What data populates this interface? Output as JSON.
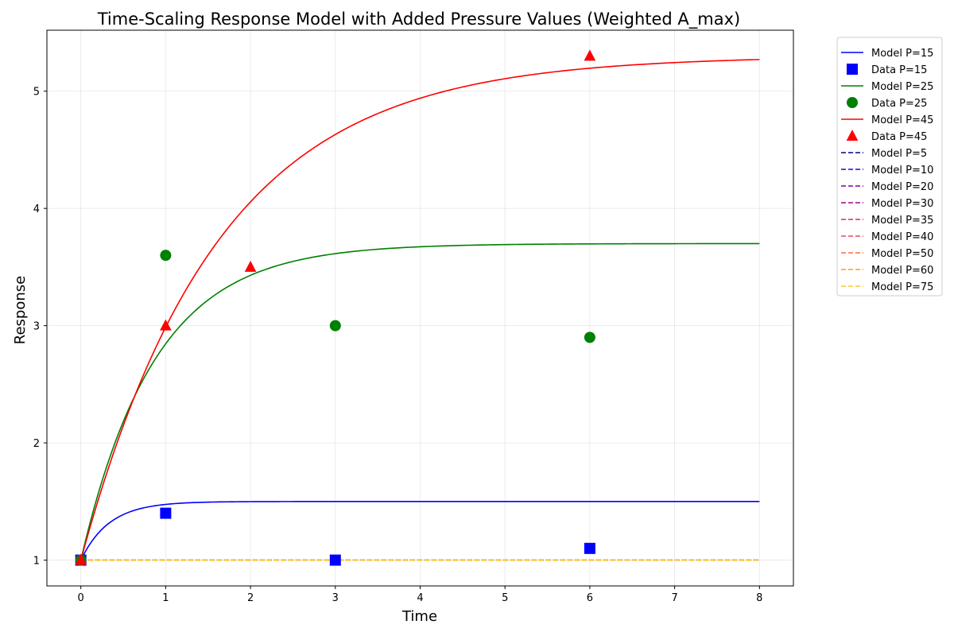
{
  "chart_data": {
    "type": "line",
    "title": "Time-Scaling Response Model with Added Pressure Values (Weighted A_max)",
    "xlabel": "Time",
    "ylabel": "Response",
    "xlim": [
      -0.4,
      8.4
    ],
    "ylim": [
      0.78,
      5.52
    ],
    "xticks": [
      0,
      1,
      2,
      3,
      4,
      5,
      6,
      7,
      8
    ],
    "yticks": [
      1,
      2,
      3,
      4,
      5
    ],
    "grid": true,
    "legend_position": "outside-top-right",
    "model_series": [
      {
        "name": "Model P=15",
        "color": "#0000ff",
        "style": "solid",
        "asymptote": 1.5,
        "rate": 3.0
      },
      {
        "name": "Model P=25",
        "color": "#008000",
        "style": "solid",
        "asymptote": 3.7,
        "rate": 1.15
      },
      {
        "name": "Model P=45",
        "color": "#ff0000",
        "style": "solid",
        "asymptote": 5.3,
        "rate": 0.62
      },
      {
        "name": "Model P=5",
        "color": "#00008b",
        "style": "dashed",
        "value": 1.0
      },
      {
        "name": "Model P=10",
        "color": "#2a00d5",
        "style": "dashed",
        "value": 1.0
      },
      {
        "name": "Model P=20",
        "color": "#7f00aa",
        "style": "dashed",
        "value": 1.0
      },
      {
        "name": "Model P=30",
        "color": "#aa0080",
        "style": "dashed",
        "value": 1.0
      },
      {
        "name": "Model P=35",
        "color": "#d42a6a",
        "style": "dashed",
        "value": 1.0
      },
      {
        "name": "Model P=40",
        "color": "#e5485a",
        "style": "dashed",
        "value": 1.0
      },
      {
        "name": "Model P=50",
        "color": "#ff6a40",
        "style": "dashed",
        "value": 1.0
      },
      {
        "name": "Model P=60",
        "color": "#ff9a20",
        "style": "dashed",
        "value": 1.0
      },
      {
        "name": "Model P=75",
        "color": "#ffc820",
        "style": "dashed",
        "value": 1.0
      }
    ],
    "data_series": [
      {
        "name": "Data P=15",
        "color": "#0000ff",
        "marker": "square",
        "x": [
          0,
          1,
          3,
          6
        ],
        "y": [
          1.0,
          1.4,
          1.0,
          1.1
        ]
      },
      {
        "name": "Data P=25",
        "color": "#008000",
        "marker": "circle",
        "x": [
          0,
          1,
          3,
          6
        ],
        "y": [
          1.0,
          3.6,
          3.0,
          2.9
        ]
      },
      {
        "name": "Data P=45",
        "color": "#ff0000",
        "marker": "triangle",
        "x": [
          0,
          1,
          2,
          6
        ],
        "y": [
          1.0,
          3.0,
          3.5,
          5.3
        ]
      }
    ],
    "legend_order": [
      "Model P=15",
      "Data P=15",
      "Model P=25",
      "Data P=25",
      "Model P=45",
      "Data P=45",
      "Model P=5",
      "Model P=10",
      "Model P=20",
      "Model P=30",
      "Model P=35",
      "Model P=40",
      "Model P=50",
      "Model P=60",
      "Model P=75"
    ]
  }
}
